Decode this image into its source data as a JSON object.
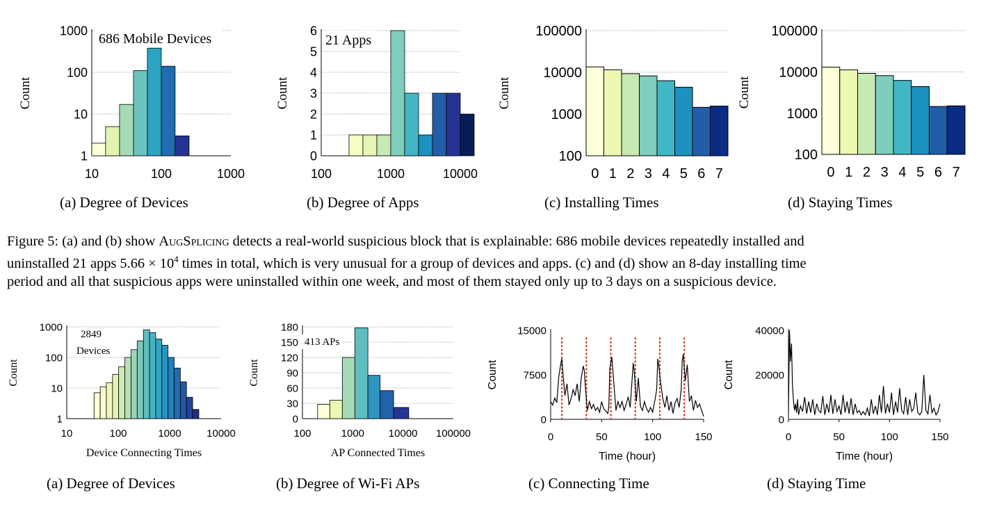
{
  "top_row": {
    "subcaptions": [
      "(a) Degree of Devices",
      "(b) Degree of Apps",
      "(c) Installing Times",
      "(d) Staying Times"
    ]
  },
  "figure5_caption": {
    "line1_a": "Figure 5: (a) and (b) show ",
    "name": "AugSplicing",
    "line1_b": " detects a real-world suspicious block that is explainable: 686 mobile devices repeatedly installed and",
    "line2_a": "uninstalled 21 apps ",
    "sci_mantissa": "5.66 × 10",
    "sci_exp": "4",
    "line2_b": " times in total, which is very unusual for a group of devices and apps. (c) and (d) show an 8-day installing time",
    "line3": "period and all that suspicious apps were uninstalled within one week, and most of them stayed only up to 3 days on a suspicious device."
  },
  "bottom_row": {
    "subcaptions": [
      "(a) Degree of Devices",
      "(b) Degree of Wi-Fi APs",
      "(c) Connecting Time",
      "(d) Staying Time"
    ]
  },
  "chart_data": [
    {
      "type": "bar",
      "panel": "top-a",
      "annotation": "686 Mobile Devices",
      "ylabel": "Count",
      "xscale": "log",
      "yscale": "log",
      "xlim": [
        10,
        1000
      ],
      "ylim": [
        1,
        1000
      ],
      "xticks": [
        "10",
        "100",
        "1000"
      ],
      "yticks": [
        "1",
        "10",
        "100",
        "1000"
      ],
      "bins": [
        {
          "x0": 10,
          "x1": 15.8,
          "value": 2
        },
        {
          "x0": 15.8,
          "x1": 25.1,
          "value": 5
        },
        {
          "x0": 25.1,
          "x1": 39.8,
          "value": 17
        },
        {
          "x0": 39.8,
          "x1": 63.1,
          "value": 110
        },
        {
          "x0": 63.1,
          "x1": 100,
          "value": 380
        },
        {
          "x0": 100,
          "x1": 158,
          "value": 140
        },
        {
          "x0": 158,
          "x1": 251,
          "value": 3
        }
      ],
      "colors": [
        "#ffffd9",
        "#e3f4b1",
        "#a7dab6",
        "#6bc3bd",
        "#2ea4c3",
        "#206db0",
        "#253494"
      ]
    },
    {
      "type": "bar",
      "panel": "top-b",
      "annotation": "21 Apps",
      "ylabel": "Count",
      "xscale": "log",
      "yscale": "linear",
      "xlim": [
        100,
        10000
      ],
      "ylim": [
        0,
        6
      ],
      "xticks": [
        "100",
        "1000",
        "10000"
      ],
      "yticks": [
        "0",
        "1",
        "2",
        "3",
        "4",
        "5",
        "6"
      ],
      "bins": [
        {
          "x0": 251,
          "x1": 398,
          "value": 1
        },
        {
          "x0": 398,
          "x1": 631,
          "value": 1
        },
        {
          "x0": 631,
          "x1": 1000,
          "value": 1
        },
        {
          "x0": 1000,
          "x1": 1585,
          "value": 6
        },
        {
          "x0": 1585,
          "x1": 2512,
          "value": 3
        },
        {
          "x0": 2512,
          "x1": 3981,
          "value": 1
        },
        {
          "x0": 3981,
          "x1": 6310,
          "value": 3
        },
        {
          "x0": 6310,
          "x1": 10000,
          "value": 3
        },
        {
          "x0": 10000,
          "x1": 15849,
          "value": 2
        }
      ],
      "colors": [
        "#f7fcc4",
        "#e7f5b5",
        "#c7e9b4",
        "#7fcdbb",
        "#41b6c4",
        "#1d91c0",
        "#225ea8",
        "#253494",
        "#081d58"
      ]
    },
    {
      "type": "bar",
      "panel": "top-c",
      "ylabel": "Count",
      "yscale": "log",
      "ylim": [
        100,
        100000
      ],
      "categories": [
        "0",
        "1",
        "2",
        "3",
        "4",
        "5",
        "6",
        "7"
      ],
      "yticks": [
        "100",
        "1000",
        "10000",
        "100000"
      ],
      "values": [
        13500,
        11500,
        9300,
        8200,
        6300,
        4400,
        1450,
        1550
      ],
      "colors": [
        "#ffffd9",
        "#edf8b1",
        "#c7e9b4",
        "#7fcdbb",
        "#41b6c4",
        "#1d91c0",
        "#225ea8",
        "#0c2c84"
      ]
    },
    {
      "type": "bar",
      "panel": "top-d",
      "ylabel": "Count",
      "yscale": "log",
      "ylim": [
        100,
        100000
      ],
      "categories": [
        "0",
        "1",
        "2",
        "3",
        "4",
        "5",
        "6",
        "7"
      ],
      "yticks": [
        "100",
        "1000",
        "10000",
        "100000"
      ],
      "values": [
        13000,
        11200,
        9200,
        8100,
        6200,
        4400,
        1450,
        1500
      ],
      "colors": [
        "#ffffd9",
        "#edf8b1",
        "#c7e9b4",
        "#7fcdbb",
        "#41b6c4",
        "#1d91c0",
        "#225ea8",
        "#0c2c84"
      ]
    },
    {
      "type": "bar",
      "panel": "bottom-a",
      "annotation_lines": [
        "2849",
        "Devices"
      ],
      "xlabel": "Device Connecting Times",
      "ylabel": "Count",
      "xscale": "log",
      "yscale": "log",
      "xlim": [
        10,
        10000
      ],
      "ylim": [
        1,
        1000
      ],
      "xticks": [
        "10",
        "100",
        "1000",
        "10000"
      ],
      "yticks": [
        "1",
        "10",
        "100",
        "1000"
      ],
      "bins": [
        {
          "x0": 34.0,
          "x1": 44.7,
          "value": 7
        },
        {
          "x0": 44.7,
          "x1": 58.9,
          "value": 11
        },
        {
          "x0": 58.9,
          "x1": 77.6,
          "value": 15
        },
        {
          "x0": 77.6,
          "x1": 102,
          "value": 28
        },
        {
          "x0": 102,
          "x1": 135,
          "value": 50
        },
        {
          "x0": 135,
          "x1": 178,
          "value": 100
        },
        {
          "x0": 178,
          "x1": 234,
          "value": 180
        },
        {
          "x0": 234,
          "x1": 309,
          "value": 350
        },
        {
          "x0": 309,
          "x1": 407,
          "value": 800
        },
        {
          "x0": 407,
          "x1": 536,
          "value": 650
        },
        {
          "x0": 536,
          "x1": 706,
          "value": 400
        },
        {
          "x0": 706,
          "x1": 930,
          "value": 250
        },
        {
          "x0": 930,
          "x1": 1226,
          "value": 100
        },
        {
          "x0": 1226,
          "x1": 1614,
          "value": 45
        },
        {
          "x0": 1614,
          "x1": 2126,
          "value": 16
        },
        {
          "x0": 2126,
          "x1": 2800,
          "value": 5
        },
        {
          "x0": 2800,
          "x1": 3689,
          "value": 2
        }
      ],
      "colors": [
        "#ffffd9",
        "#fafdcf",
        "#f0f9be",
        "#e2f3b4",
        "#d0ecb3",
        "#b6e1b4",
        "#99d5b7",
        "#7cc9bb",
        "#5fbebf",
        "#46b3c3",
        "#34a4c3",
        "#2693c1",
        "#2180bb",
        "#206db0",
        "#2258a6",
        "#23439b",
        "#1f2f85"
      ]
    },
    {
      "type": "bar",
      "panel": "bottom-b",
      "annotation": "413 APs",
      "xlabel": "AP Connected Times",
      "ylabel": "Count",
      "xscale": "log",
      "yscale": "linear",
      "xlim": [
        100,
        100000
      ],
      "ylim": [
        0,
        180
      ],
      "xticks": [
        "100",
        "1000",
        "10000",
        "100000"
      ],
      "yticks": [
        "0",
        "30",
        "60",
        "90",
        "120",
        "150",
        "180"
      ],
      "bins": [
        {
          "x0": 200,
          "x1": 350,
          "value": 28
        },
        {
          "x0": 350,
          "x1": 620,
          "value": 36
        },
        {
          "x0": 620,
          "x1": 1100,
          "value": 120
        },
        {
          "x0": 1100,
          "x1": 2000,
          "value": 178
        },
        {
          "x0": 2000,
          "x1": 3500,
          "value": 85
        },
        {
          "x0": 3500,
          "x1": 6500,
          "value": 55
        },
        {
          "x0": 6500,
          "x1": 13000,
          "value": 22
        }
      ],
      "colors": [
        "#ffffd9",
        "#edf8b1",
        "#a7dab6",
        "#5fbebf",
        "#2c96c0",
        "#2262aa",
        "#253494"
      ]
    },
    {
      "type": "line",
      "panel": "bottom-c",
      "xlabel": "Time (hour)",
      "ylabel": "Count",
      "xlim": [
        0,
        150
      ],
      "ylim": [
        0,
        15000
      ],
      "xticks": [
        "0",
        "50",
        "100",
        "150"
      ],
      "yticks": [
        "0",
        "7500",
        "15000"
      ],
      "dashed_markers_x": [
        11,
        35,
        59,
        83,
        107,
        131
      ],
      "x": [
        0,
        2,
        4,
        6,
        8,
        10,
        11,
        12,
        14,
        16,
        18,
        20,
        22,
        24,
        26,
        28,
        30,
        32,
        33,
        34,
        36,
        38,
        40,
        42,
        44,
        46,
        48,
        50,
        52,
        54,
        56,
        57,
        58,
        60,
        62,
        64,
        66,
        68,
        70,
        72,
        74,
        76,
        78,
        80,
        81,
        82,
        84,
        86,
        88,
        90,
        92,
        94,
        96,
        98,
        100,
        102,
        104,
        105,
        106,
        108,
        110,
        112,
        114,
        116,
        118,
        120,
        122,
        124,
        126,
        128,
        129,
        130,
        132,
        134,
        136,
        138,
        140,
        142,
        144,
        146,
        148,
        150
      ],
      "y": [
        3000,
        2400,
        3600,
        2800,
        7200,
        9500,
        10200,
        7800,
        4000,
        6000,
        2400,
        3500,
        5000,
        4000,
        6000,
        3000,
        7000,
        9000,
        8200,
        5500,
        1500,
        3000,
        1800,
        2500,
        1500,
        2000,
        1200,
        3000,
        1800,
        1400,
        1000,
        2000,
        8600,
        10500,
        6000,
        1500,
        3000,
        2000,
        3000,
        1500,
        2500,
        3800,
        2000,
        7000,
        9500,
        8000,
        3000,
        7000,
        2200,
        1500,
        3000,
        1800,
        1200,
        2000,
        1200,
        3000,
        5000,
        10200,
        9000,
        6000,
        3500,
        2000,
        4000,
        1500,
        3000,
        1000,
        2800,
        3500,
        2000,
        5000,
        9800,
        11000,
        6500,
        9200,
        3000,
        4000,
        1500,
        3200,
        2000,
        2600,
        1500,
        500
      ]
    },
    {
      "type": "line",
      "panel": "bottom-d",
      "xlabel": "Time (hour)",
      "ylabel": "Count",
      "xlim": [
        0,
        150
      ],
      "ylim": [
        0,
        40000
      ],
      "xticks": [
        "0",
        "50",
        "100",
        "150"
      ],
      "yticks": [
        "0",
        "20000",
        "40000"
      ],
      "x": [
        0,
        1,
        2,
        3,
        4,
        5,
        6,
        7,
        8,
        9,
        10,
        12,
        14,
        16,
        18,
        20,
        22,
        24,
        26,
        28,
        30,
        32,
        34,
        36,
        38,
        40,
        42,
        44,
        46,
        48,
        50,
        52,
        54,
        56,
        58,
        60,
        62,
        64,
        66,
        68,
        70,
        72,
        74,
        76,
        78,
        80,
        82,
        84,
        86,
        88,
        90,
        92,
        94,
        96,
        98,
        100,
        102,
        104,
        106,
        108,
        110,
        112,
        114,
        116,
        118,
        120,
        122,
        124,
        126,
        128,
        130,
        132,
        134,
        136,
        138,
        140,
        142,
        144,
        146,
        148,
        150
      ],
      "y": [
        3000,
        40000,
        26000,
        34000,
        15000,
        8000,
        4000,
        7000,
        3000,
        9000,
        2000,
        6000,
        3500,
        10000,
        2500,
        8000,
        3000,
        9000,
        2000,
        7000,
        4000,
        3000,
        10500,
        2000,
        7000,
        3000,
        11000,
        2500,
        9000,
        3500,
        6000,
        2000,
        11000,
        3000,
        8000,
        2500,
        9500,
        2000,
        7000,
        3000,
        4000,
        2000,
        3500,
        2000,
        5000,
        1500,
        9000,
        2500,
        6000,
        2000,
        11000,
        3000,
        15000,
        2500,
        7000,
        3000,
        12000,
        2000,
        8000,
        3000,
        14000,
        4000,
        2500,
        10000,
        2000,
        9000,
        3500,
        5000,
        12000,
        3000,
        2000,
        3500,
        20000,
        4000,
        2500,
        11000,
        3000,
        5000,
        2000,
        3500,
        7000
      ]
    }
  ]
}
